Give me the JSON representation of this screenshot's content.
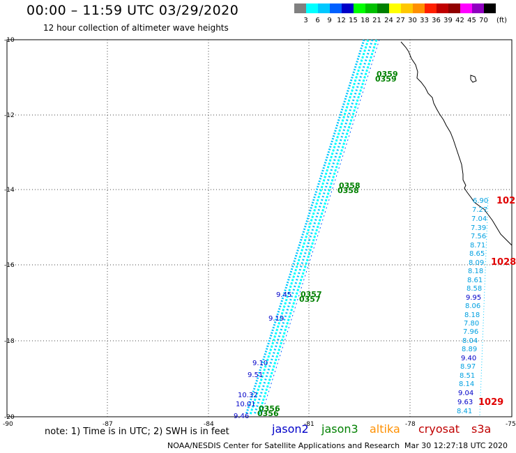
{
  "header": {
    "title": "00:00 – 11:59 UTC 03/29/2020",
    "subtitle": "12 hour collection of altimeter wave heights"
  },
  "color_scale": {
    "unit": "(ft)",
    "entries": [
      {
        "label": "",
        "color": "#808080"
      },
      {
        "label": "3",
        "color": "#00ffff"
      },
      {
        "label": "6",
        "color": "#00c8ff"
      },
      {
        "label": "9",
        "color": "#0060ff"
      },
      {
        "label": "12",
        "color": "#0000c8"
      },
      {
        "label": "15",
        "color": "#00ff00"
      },
      {
        "label": "18",
        "color": "#00c000"
      },
      {
        "label": "21",
        "color": "#008000"
      },
      {
        "label": "24",
        "color": "#ffff00"
      },
      {
        "label": "27",
        "color": "#ffc800"
      },
      {
        "label": "30",
        "color": "#ff9000"
      },
      {
        "label": "33",
        "color": "#ff2000"
      },
      {
        "label": "36",
        "color": "#c00000"
      },
      {
        "label": "39",
        "color": "#900000"
      },
      {
        "label": "42",
        "color": "#ff00ff"
      },
      {
        "label": "45",
        "color": "#9000c0"
      },
      {
        "label": "70",
        "color": "#000000"
      }
    ]
  },
  "map": {
    "lat_labels": [
      "-10",
      "-12",
      "-14",
      "-16",
      "-18",
      "-20"
    ],
    "lon_labels": [
      "-90",
      "-87",
      "-84",
      "-81",
      "-78",
      "-75"
    ],
    "pass_times": [
      "0359",
      "0358",
      "0357",
      "0356"
    ],
    "track_values": [
      "9.45",
      "9.19",
      "9.10",
      "9.51",
      "10.32",
      "10.01",
      "9.46"
    ],
    "east_track": [
      "6.90",
      "7.27",
      "7.04",
      "7.39",
      "7.56",
      "8.71",
      "8.65",
      "8.09",
      "8.18",
      "8.61",
      "8.58",
      "9.95",
      "8.06",
      "8.18",
      "7.80",
      "7.96",
      "8.04",
      "8.89",
      "9.40",
      "8.97",
      "8.51",
      "8.14",
      "9.04",
      "9.63",
      "8.41"
    ],
    "red_labels": [
      "102",
      "1028",
      "1029"
    ]
  },
  "legend": {
    "note": "note: 1) Time is in UTC; 2) SWH is in feet",
    "items": [
      {
        "label": "jason2",
        "color": "#0000c8"
      },
      {
        "label": "jason3",
        "color": "#008000"
      },
      {
        "label": "altika",
        "color": "#ff9000"
      },
      {
        "label": "cryosat",
        "color": "#c00000"
      },
      {
        "label": "s3a",
        "color": "#c00000"
      }
    ]
  },
  "footer": {
    "credit": "NOAA/NESDIS Center for Satellite Applications and Research",
    "timestamp": "Mar 30 12:27:18 UTC 2020"
  }
}
